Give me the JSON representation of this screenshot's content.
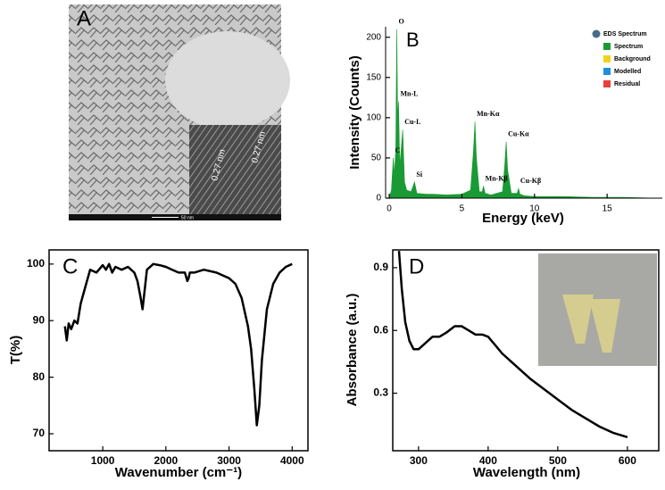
{
  "image_panel": {
    "label": "A",
    "scale_bar_label": "50 nm",
    "inset_annotations": [
      "0.27 nm",
      "0.27 nm"
    ]
  },
  "chart_data": [
    {
      "type": "area",
      "label": "B",
      "x_label": "Energy (keV)",
      "y_label": "Intensity (Counts)",
      "color": "#1a9a34",
      "x": [
        0,
        0.15,
        0.28,
        0.35,
        0.45,
        0.52,
        0.58,
        0.64,
        0.72,
        0.82,
        0.93,
        1.05,
        1.2,
        1.5,
        1.74,
        1.9,
        2.5,
        3,
        4,
        5,
        5.6,
        5.8,
        5.9,
        6.0,
        6.2,
        6.4,
        6.49,
        6.6,
        7,
        7.8,
        7.95,
        8.05,
        8.15,
        8.4,
        8.8,
        8.9,
        9.0,
        9.3,
        10,
        12,
        14,
        16,
        18.5
      ],
      "values": [
        0,
        10,
        50,
        30,
        60,
        210,
        100,
        120,
        40,
        60,
        85,
        20,
        10,
        8,
        20,
        6,
        5,
        5,
        4,
        5,
        10,
        60,
        95,
        50,
        8,
        8,
        15,
        6,
        4,
        8,
        40,
        70,
        35,
        6,
        6,
        12,
        5,
        3,
        2,
        2,
        1,
        1,
        0
      ],
      "xlim": [
        -0.25,
        18.8
      ],
      "xticks": [
        0,
        5,
        10,
        15
      ],
      "ylim": [
        0,
        213
      ],
      "yticks": [
        0,
        50,
        100,
        150,
        200
      ],
      "annotations": [
        {
          "text": "C",
          "x": 0.28
        },
        {
          "text": "O",
          "x": 0.52
        },
        {
          "text": "Mn-L",
          "x": 0.64
        },
        {
          "text": "Cu-L",
          "x": 0.93
        },
        {
          "text": "Si",
          "x": 1.74
        },
        {
          "text": "Mn-Kα",
          "x": 5.9
        },
        {
          "text": "Mn-Kβ",
          "x": 6.49
        },
        {
          "text": "Cu-Kα",
          "x": 8.05
        },
        {
          "text": "Cu-Kβ",
          "x": 8.9
        }
      ],
      "legend": {
        "title": "EDS Spectrum",
        "items": [
          {
            "name": "Spectrum",
            "color": "#1a9a34"
          },
          {
            "name": "Background",
            "color": "#f2d21b"
          },
          {
            "name": "Modelled",
            "color": "#1e8fe0"
          },
          {
            "name": "Residual",
            "color": "#e8403a"
          }
        ]
      }
    },
    {
      "type": "line",
      "label": "C",
      "x_label": "Wavenumber (cm⁻¹)",
      "y_label": "T(%)",
      "color": "#000000",
      "x": [
        400,
        430,
        460,
        500,
        550,
        600,
        650,
        700,
        750,
        800,
        900,
        1000,
        1050,
        1100,
        1150,
        1200,
        1300,
        1400,
        1500,
        1550,
        1600,
        1630,
        1660,
        1700,
        1800,
        1900,
        2000,
        2100,
        2200,
        2300,
        2340,
        2360,
        2380,
        2450,
        2600,
        2800,
        3000,
        3100,
        3200,
        3300,
        3350,
        3400,
        3440,
        3480,
        3520,
        3600,
        3700,
        3800,
        3900,
        4000
      ],
      "values": [
        89,
        86.5,
        89.5,
        88.5,
        90,
        89.5,
        93,
        95,
        97,
        99,
        98.5,
        99.8,
        99,
        100,
        98.5,
        99.5,
        99,
        99.5,
        98.5,
        97,
        94,
        92,
        95,
        99,
        100,
        99.8,
        99.5,
        99,
        98.5,
        98.5,
        97,
        97.5,
        98.5,
        98.5,
        99,
        98.5,
        97.5,
        96.5,
        94,
        89,
        85,
        78,
        71.5,
        75,
        83,
        92,
        96.5,
        98.5,
        99.5,
        100
      ],
      "xlim": [
        150,
        4250
      ],
      "xticks": [
        1000,
        2000,
        3000,
        4000
      ],
      "ylim": [
        67,
        102.5
      ],
      "yticks": [
        70,
        80,
        90,
        100
      ]
    },
    {
      "type": "line",
      "label": "D",
      "x_label": "Wavelength (nm)",
      "y_label": "Absorbance (a.u.)",
      "color": "#000000",
      "x": [
        272,
        276,
        281,
        287,
        293,
        300,
        310,
        320,
        330,
        340,
        352,
        362,
        372,
        382,
        392,
        400,
        410,
        420,
        440,
        460,
        480,
        500,
        520,
        540,
        560,
        580,
        600
      ],
      "values": [
        0.98,
        0.8,
        0.64,
        0.55,
        0.51,
        0.51,
        0.54,
        0.57,
        0.57,
        0.59,
        0.62,
        0.62,
        0.6,
        0.58,
        0.58,
        0.57,
        0.53,
        0.49,
        0.43,
        0.37,
        0.32,
        0.27,
        0.22,
        0.18,
        0.14,
        0.11,
        0.09
      ],
      "xlim": [
        263,
        645
      ],
      "xticks": [
        300,
        400,
        500,
        600
      ],
      "ylim": [
        0.025,
        0.985
      ],
      "yticks": [
        0.3,
        0.6,
        0.9
      ]
    }
  ]
}
